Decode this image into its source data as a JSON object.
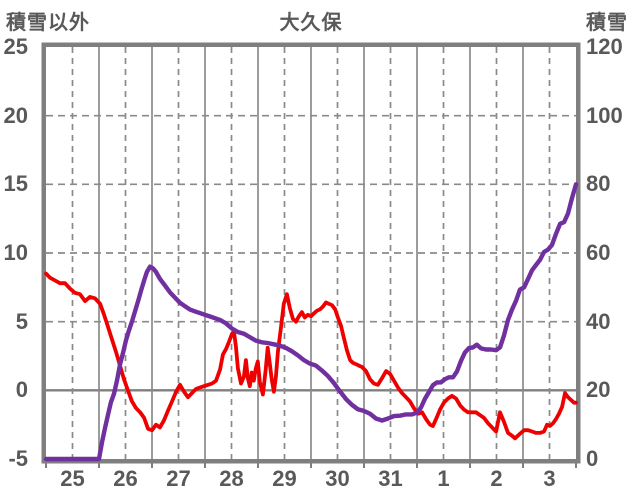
{
  "header": {
    "left_axis_title": "積雪以外",
    "chart_title": "大久保",
    "right_axis_title": "積雪"
  },
  "colors": {
    "text": "#595959",
    "grid": "#8A8A8A",
    "border": "#7F7F7F",
    "red_series": "#EE0000",
    "purple_series": "#7030A0",
    "background": "#FFFFFF"
  },
  "chart_data": {
    "type": "line",
    "title": "大久保",
    "x_axis": {
      "tick_labels": [
        "25",
        "26",
        "27",
        "28",
        "29",
        "30",
        "31",
        "1",
        "2",
        "3"
      ],
      "hours_total": 240,
      "note": "10 days, solid gridline at each day boundary, dashed at each half day"
    },
    "left_axis": {
      "title": "積雪以外",
      "min": -5,
      "max": 25,
      "ticks": [
        25,
        20,
        15,
        10,
        5,
        0,
        -5
      ]
    },
    "right_axis": {
      "title": "積雪",
      "min": 0,
      "max": 120,
      "ticks": [
        120,
        100,
        80,
        60,
        40,
        20,
        0
      ]
    },
    "grid": {
      "horizontal": "dashed, zero line solid",
      "vertical": "solid day boundaries + dashed midpoints"
    },
    "series": [
      {
        "id": "red-left-axis-series",
        "label": "積雪以外",
        "axis": "left",
        "color": "#EE0000",
        "points": [
          [
            0,
            8.5
          ],
          [
            1.8,
            8.2
          ],
          [
            4.1,
            8
          ],
          [
            6.3,
            7.8
          ],
          [
            8.6,
            7.8
          ],
          [
            10.9,
            7.4
          ],
          [
            13.1,
            7.1
          ],
          [
            15.4,
            7
          ],
          [
            17.7,
            6.5
          ],
          [
            19.9,
            6.8
          ],
          [
            22.2,
            6.7
          ],
          [
            24.5,
            6.3
          ],
          [
            26.3,
            5.5
          ],
          [
            28.1,
            4.6
          ],
          [
            29.9,
            3.7
          ],
          [
            31.7,
            2.8
          ],
          [
            33.5,
            1.8
          ],
          [
            35.3,
            0.8
          ],
          [
            37.1,
            0
          ],
          [
            38.9,
            -0.8
          ],
          [
            40.8,
            -1.3
          ],
          [
            42.6,
            -1.6
          ],
          [
            44.4,
            -2
          ],
          [
            46.2,
            -2.8
          ],
          [
            48,
            -2.9
          ],
          [
            49.8,
            -2.5
          ],
          [
            51.6,
            -2.7
          ],
          [
            53.4,
            -2.2
          ],
          [
            55.2,
            -1.5
          ],
          [
            57.1,
            -0.8
          ],
          [
            58.9,
            -0.1
          ],
          [
            60.7,
            0.4
          ],
          [
            62.5,
            -0.1
          ],
          [
            64.3,
            -0.5
          ],
          [
            66.1,
            -0.2
          ],
          [
            67.9,
            0.1
          ],
          [
            69.7,
            0.2
          ],
          [
            71.5,
            0.3
          ],
          [
            73.4,
            0.4
          ],
          [
            75.2,
            0.5
          ],
          [
            77,
            0.7
          ],
          [
            78.8,
            1.5
          ],
          [
            80.1,
            2.6
          ],
          [
            81.5,
            3
          ],
          [
            82.8,
            3.5
          ],
          [
            84.2,
            4.1
          ],
          [
            85.1,
            4.3
          ],
          [
            86,
            3.2
          ],
          [
            86.9,
            1.6
          ],
          [
            88.3,
            0.5
          ],
          [
            89.6,
            1
          ],
          [
            90.5,
            2.2
          ],
          [
            91.4,
            0.9
          ],
          [
            92.3,
            0.3
          ],
          [
            93.2,
            1.3
          ],
          [
            94.1,
            0.7
          ],
          [
            95,
            1.6
          ],
          [
            95.9,
            2.1
          ],
          [
            96.8,
            0.6
          ],
          [
            98.2,
            -0.3
          ],
          [
            99.5,
            1.5
          ],
          [
            100.4,
            3.1
          ],
          [
            101.3,
            2
          ],
          [
            102.2,
            0.8
          ],
          [
            103.2,
            -0.1
          ],
          [
            104.1,
            1
          ],
          [
            105,
            2.8
          ],
          [
            106.4,
            4.6
          ],
          [
            107.7,
            6.3
          ],
          [
            109.1,
            7
          ],
          [
            110.4,
            6
          ],
          [
            111.8,
            5.2
          ],
          [
            113.2,
            5
          ],
          [
            114.5,
            5.4
          ],
          [
            115.9,
            5.7
          ],
          [
            117.2,
            5.3
          ],
          [
            118.6,
            5.5
          ],
          [
            120,
            5.4
          ],
          [
            121.3,
            5.6
          ],
          [
            122.7,
            5.8
          ],
          [
            124.1,
            5.9
          ],
          [
            125.4,
            6.1
          ],
          [
            126.8,
            6.4
          ],
          [
            128.1,
            6.3
          ],
          [
            129.5,
            6.2
          ],
          [
            130.9,
            5.9
          ],
          [
            132.2,
            5.3
          ],
          [
            133.6,
            4.7
          ],
          [
            134.9,
            3.8
          ],
          [
            136.3,
            2.9
          ],
          [
            137.7,
            2.2
          ],
          [
            139,
            2
          ],
          [
            140.4,
            1.9
          ],
          [
            141.7,
            1.8
          ],
          [
            143.1,
            1.7
          ],
          [
            144.9,
            1.4
          ],
          [
            146.7,
            0.8
          ],
          [
            148.5,
            0.5
          ],
          [
            150.3,
            0.4
          ],
          [
            152.2,
            0.9
          ],
          [
            154,
            1.4
          ],
          [
            155.8,
            1.2
          ],
          [
            157.6,
            0.7
          ],
          [
            159.4,
            0.2
          ],
          [
            161.2,
            -0.2
          ],
          [
            163,
            -0.5
          ],
          [
            164.8,
            -0.8
          ],
          [
            166.6,
            -1.3
          ],
          [
            168.5,
            -1.7
          ],
          [
            170.3,
            -1.6
          ],
          [
            172.1,
            -2.1
          ],
          [
            173.9,
            -2.5
          ],
          [
            175.2,
            -2.6
          ],
          [
            176.6,
            -2.1
          ],
          [
            178.4,
            -1.4
          ],
          [
            180.2,
            -0.9
          ],
          [
            182,
            -0.6
          ],
          [
            183.8,
            -0.4
          ],
          [
            185.7,
            -0.6
          ],
          [
            187.5,
            -1.1
          ],
          [
            189.3,
            -1.4
          ],
          [
            191.1,
            -1.6
          ],
          [
            192.9,
            -1.6
          ],
          [
            194.7,
            -1.6
          ],
          [
            196.5,
            -1.8
          ],
          [
            198.3,
            -2
          ],
          [
            200.2,
            -2.4
          ],
          [
            202,
            -2.7
          ],
          [
            203.8,
            -3
          ],
          [
            205.6,
            -1.6
          ],
          [
            207.4,
            -2.3
          ],
          [
            209.2,
            -3.1
          ],
          [
            211,
            -3.3
          ],
          [
            212.4,
            -3.5
          ],
          [
            213.7,
            -3.3
          ],
          [
            215.1,
            -3.1
          ],
          [
            216.5,
            -2.9
          ],
          [
            218.3,
            -2.9
          ],
          [
            220.1,
            -3
          ],
          [
            221.9,
            -3.1
          ],
          [
            223.7,
            -3.1
          ],
          [
            225.5,
            -3
          ],
          [
            226.9,
            -2.5
          ],
          [
            228.2,
            -2.6
          ],
          [
            229.6,
            -2.4
          ],
          [
            230.9,
            -2.1
          ],
          [
            232.3,
            -1.7
          ],
          [
            233.7,
            -1.2
          ],
          [
            235,
            -0.2
          ],
          [
            236.4,
            -0.5
          ],
          [
            237.7,
            -0.7
          ],
          [
            239.1,
            -0.9
          ],
          [
            240,
            -0.9
          ]
        ]
      },
      {
        "id": "purple-right-axis-series",
        "label": "積雪",
        "axis": "right",
        "color": "#7030A0",
        "points": [
          [
            0,
            0
          ],
          [
            6,
            0
          ],
          [
            12,
            0
          ],
          [
            18,
            0
          ],
          [
            24,
            0
          ],
          [
            25.4,
            5
          ],
          [
            26.7,
            9
          ],
          [
            28.1,
            13
          ],
          [
            29.4,
            16.5
          ],
          [
            30.8,
            19
          ],
          [
            32.2,
            23
          ],
          [
            33.5,
            27.5
          ],
          [
            34.9,
            31
          ],
          [
            36.2,
            34.5
          ],
          [
            37.6,
            37.5
          ],
          [
            38.9,
            40
          ],
          [
            40.3,
            43
          ],
          [
            41.7,
            46
          ],
          [
            43,
            49
          ],
          [
            44.4,
            52
          ],
          [
            45.7,
            54.5
          ],
          [
            47.1,
            56
          ],
          [
            48.5,
            55.5
          ],
          [
            49.8,
            54.5
          ],
          [
            51.6,
            52.5
          ],
          [
            53.9,
            50.5
          ],
          [
            56.2,
            48.5
          ],
          [
            58.4,
            47
          ],
          [
            60.7,
            45.5
          ],
          [
            62.9,
            44.5
          ],
          [
            65.2,
            43.5
          ],
          [
            67.5,
            43
          ],
          [
            69.7,
            42.5
          ],
          [
            72,
            42
          ],
          [
            74.3,
            41.5
          ],
          [
            76.5,
            41
          ],
          [
            78.8,
            40.5
          ],
          [
            81.5,
            39.5
          ],
          [
            84.2,
            38
          ],
          [
            86.9,
            37
          ],
          [
            89.6,
            36.5
          ],
          [
            92.3,
            35.5
          ],
          [
            95,
            34.5
          ],
          [
            97.7,
            34
          ],
          [
            100.4,
            33.8
          ],
          [
            103.2,
            33.4
          ],
          [
            105.9,
            33
          ],
          [
            108.6,
            32.4
          ],
          [
            111.3,
            31.4
          ],
          [
            114,
            30.2
          ],
          [
            116.8,
            28.8
          ],
          [
            119.5,
            27.8
          ],
          [
            122.2,
            27.2
          ],
          [
            124.9,
            25.8
          ],
          [
            127.6,
            24.2
          ],
          [
            130.3,
            22.2
          ],
          [
            133,
            19.8
          ],
          [
            135.8,
            17.5
          ],
          [
            138.5,
            15.8
          ],
          [
            141.2,
            14.5
          ],
          [
            143.9,
            14
          ],
          [
            146.7,
            13.2
          ],
          [
            149.4,
            11.8
          ],
          [
            152.2,
            11.2
          ],
          [
            154.9,
            11.8
          ],
          [
            157.6,
            12.5
          ],
          [
            160.3,
            12.6
          ],
          [
            163,
            13
          ],
          [
            165.7,
            13
          ],
          [
            168,
            13.5
          ],
          [
            169.8,
            15
          ],
          [
            171.6,
            17.5
          ],
          [
            173.4,
            19.5
          ],
          [
            175.2,
            21.5
          ],
          [
            177,
            22.3
          ],
          [
            178.8,
            22.3
          ],
          [
            180.6,
            23.2
          ],
          [
            182.4,
            23.8
          ],
          [
            184.3,
            23.8
          ],
          [
            186.1,
            25.5
          ],
          [
            187.9,
            28.5
          ],
          [
            189.7,
            31
          ],
          [
            191.5,
            32.3
          ],
          [
            193.3,
            32.5
          ],
          [
            195.1,
            33.3
          ],
          [
            197,
            32.2
          ],
          [
            199.2,
            31.9
          ],
          [
            201.5,
            31.9
          ],
          [
            203.8,
            31.7
          ],
          [
            205.6,
            32.5
          ],
          [
            207.4,
            36
          ],
          [
            209.2,
            40.5
          ],
          [
            211,
            43.5
          ],
          [
            212.8,
            46
          ],
          [
            214.6,
            49.3
          ],
          [
            216.5,
            50
          ],
          [
            218.3,
            52.5
          ],
          [
            220.1,
            55
          ],
          [
            221.9,
            56.5
          ],
          [
            223.7,
            58
          ],
          [
            225.5,
            60.3
          ],
          [
            227.3,
            61
          ],
          [
            229.1,
            62.3
          ],
          [
            230.9,
            65.5
          ],
          [
            232.8,
            68.5
          ],
          [
            234.6,
            69
          ],
          [
            236.4,
            71.5
          ],
          [
            238.2,
            76
          ],
          [
            239.1,
            78
          ],
          [
            240,
            80
          ]
        ]
      }
    ]
  }
}
